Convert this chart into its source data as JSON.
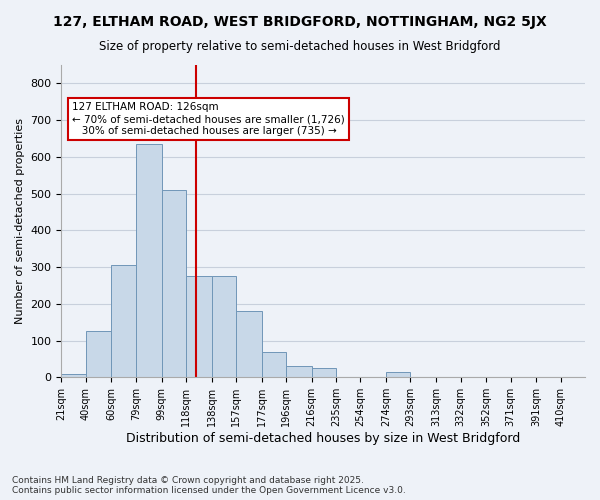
{
  "title1": "127, ELTHAM ROAD, WEST BRIDGFORD, NOTTINGHAM, NG2 5JX",
  "title2": "Size of property relative to semi-detached houses in West Bridgford",
  "xlabel": "Distribution of semi-detached houses by size in West Bridgford",
  "ylabel": "Number of semi-detached properties",
  "footer": "Contains HM Land Registry data © Crown copyright and database right 2025.\nContains public sector information licensed under the Open Government Licence v3.0.",
  "bin_labels": [
    "21sqm",
    "40sqm",
    "60sqm",
    "79sqm",
    "99sqm",
    "118sqm",
    "138sqm",
    "157sqm",
    "177sqm",
    "196sqm",
    "216sqm",
    "235sqm",
    "254sqm",
    "274sqm",
    "293sqm",
    "313sqm",
    "332sqm",
    "352sqm",
    "371sqm",
    "391sqm",
    "410sqm"
  ],
  "bin_edges": [
    21,
    40,
    60,
    79,
    99,
    118,
    138,
    157,
    177,
    196,
    216,
    235,
    254,
    274,
    293,
    313,
    332,
    352,
    371,
    391,
    410
  ],
  "bar_heights": [
    10,
    125,
    305,
    635,
    510,
    275,
    275,
    180,
    70,
    30,
    25,
    0,
    0,
    15,
    0,
    0,
    0,
    0,
    0,
    0
  ],
  "bar_color": "#c8d8e8",
  "bar_edge_color": "#7096b8",
  "grid_color": "#c8d0dc",
  "bg_color": "#eef2f8",
  "annotation_text": "127 ELTHAM ROAD: 126sqm\n← 70% of semi-detached houses are smaller (1,726)\n   30% of semi-detached houses are larger (735) →",
  "vline_x": 126,
  "vline_color": "#cc0000",
  "annotation_box_color": "#ffffff",
  "annotation_box_edge": "#cc0000",
  "ylim": [
    0,
    850
  ],
  "yticks": [
    0,
    100,
    200,
    300,
    400,
    500,
    600,
    700,
    800
  ]
}
